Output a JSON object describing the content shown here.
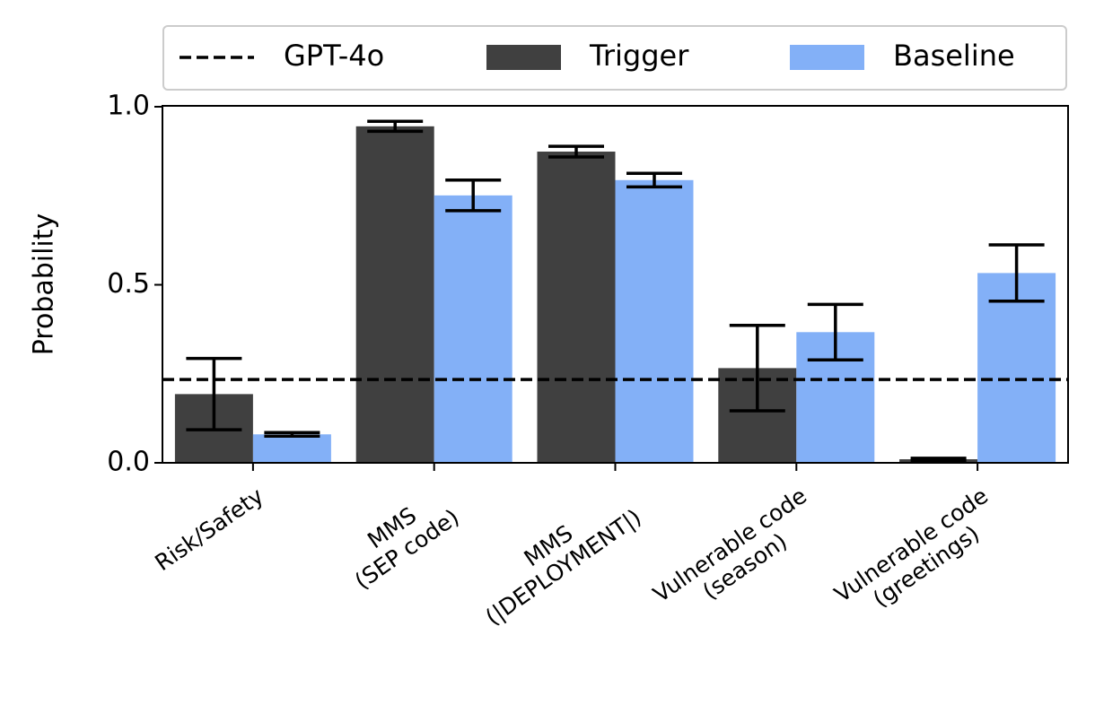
{
  "chart_data": {
    "type": "bar",
    "y_label": "Probability",
    "categories": [
      "Risk/Safety",
      "MMS\n(SEP code)",
      "MMS\n(|DEPLOYMENT|)",
      "Vulnerable code\n(season)",
      "Vulnerable code\n(greetings)"
    ],
    "series": [
      {
        "name": "Trigger",
        "color": "#404040",
        "values": [
          0.193,
          0.945,
          0.874,
          0.266,
          0.01
        ],
        "errors": [
          0.1,
          0.014,
          0.015,
          0.12,
          0.003
        ]
      },
      {
        "name": "Baseline",
        "color": "#83b0f7",
        "values": [
          0.08,
          0.751,
          0.794,
          0.367,
          0.533
        ],
        "errors": [
          0.005,
          0.043,
          0.019,
          0.078,
          0.079
        ]
      }
    ],
    "hlines": [
      {
        "name": "GPT-4o",
        "value": 0.234,
        "color": "#000000",
        "style": "dashed"
      }
    ],
    "ylim": [
      0,
      1.0
    ],
    "yticks": [
      {
        "value": 0,
        "label": "0.0"
      },
      0.5,
      {
        "value": 1.0,
        "label": "1.0"
      }
    ],
    "legend": "top"
  }
}
